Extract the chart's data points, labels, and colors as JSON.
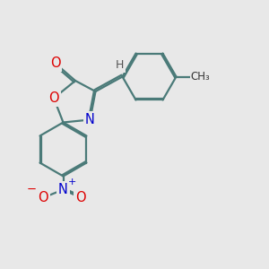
{
  "bg_color": "#e8e8e8",
  "bond_color": "#4a7a78",
  "bond_width": 1.6,
  "atom_colors": {
    "O": "#dd0000",
    "N": "#0000cc",
    "H": "#555555"
  },
  "font_size_atom": 10.5,
  "dbo": 0.055
}
